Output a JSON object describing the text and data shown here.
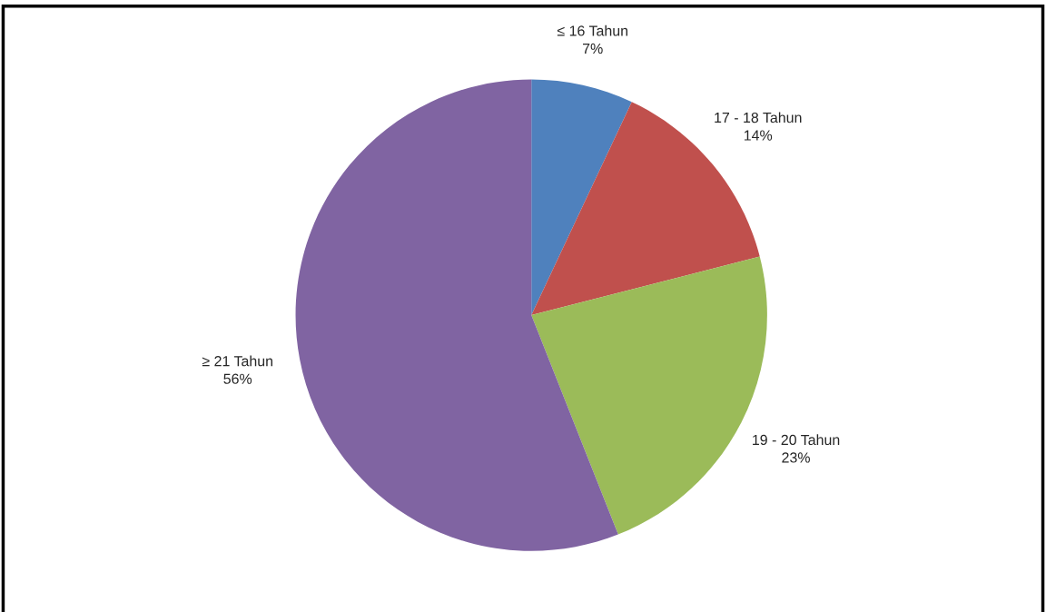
{
  "chart_data": {
    "type": "pie",
    "categories": [
      "≤ 16 Tahun",
      "17 - 18 Tahun",
      "19 - 20 Tahun",
      "≥ 21 Tahun"
    ],
    "values": [
      7,
      14,
      23,
      56
    ],
    "value_labels": [
      "7%",
      "14%",
      "23%",
      "56%"
    ],
    "colors": [
      "#4f81bd",
      "#c0504d",
      "#9bbb59",
      "#8064a2"
    ]
  }
}
